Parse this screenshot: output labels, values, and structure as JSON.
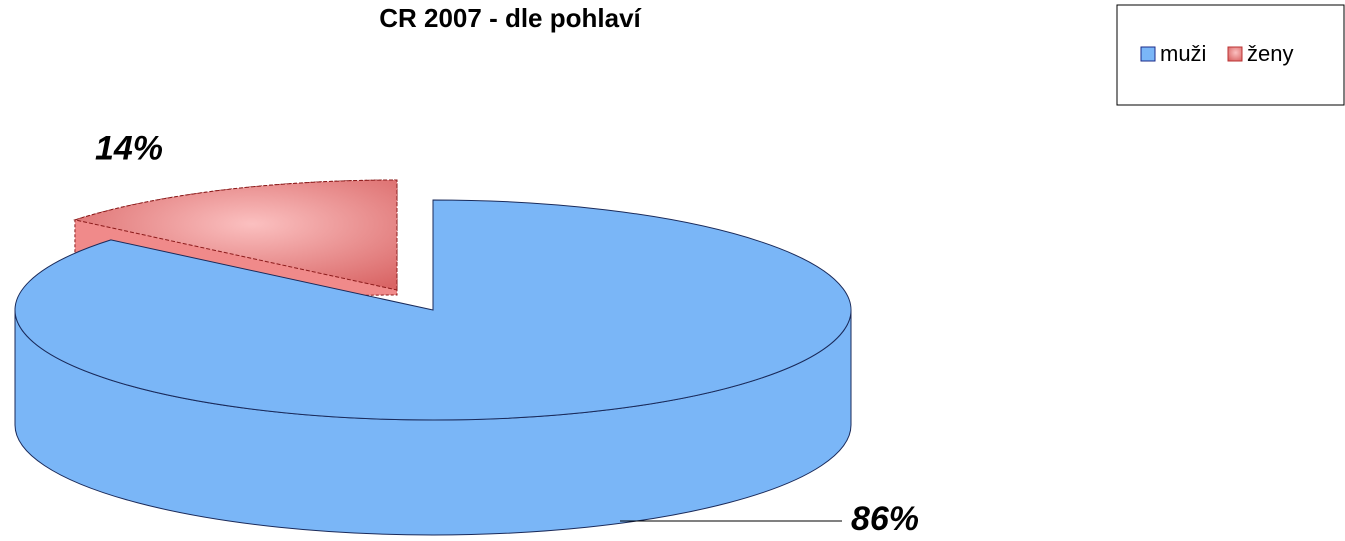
{
  "chart_data": {
    "type": "pie3d",
    "title": "CR 2007 - dle pohlaví",
    "categories": [
      "muži",
      "ženy"
    ],
    "values": [
      86,
      14
    ],
    "value_labels": [
      "86%",
      "14%"
    ],
    "colors": [
      "#7ab6f7",
      "#f08a8a"
    ],
    "legend": "top-right"
  }
}
